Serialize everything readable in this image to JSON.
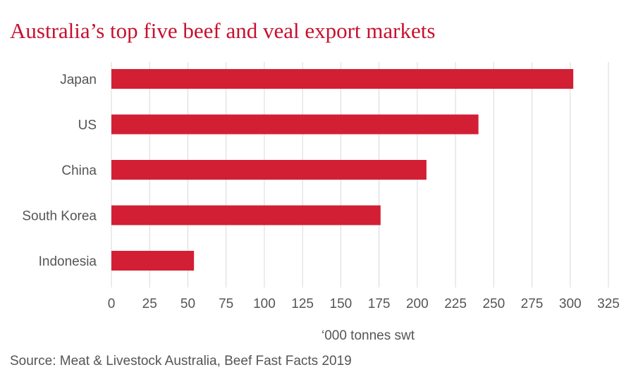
{
  "chart_data": {
    "type": "bar",
    "orientation": "horizontal",
    "title": "Australia’s top five beef and veal export markets",
    "categories": [
      "Japan",
      "US",
      "China",
      "South Korea",
      "Indonesia"
    ],
    "values": [
      302,
      240,
      206,
      176,
      54
    ],
    "xlabel": "‘000 tonnes swt",
    "ylabel": "",
    "xlim": [
      0,
      325
    ],
    "xticks": [
      0,
      25,
      50,
      75,
      100,
      125,
      150,
      175,
      200,
      225,
      250,
      275,
      300,
      325
    ],
    "grid": "vertical",
    "bar_color": "#d21f34",
    "grid_color": "#d9d9d9"
  },
  "source": "Source: Meat & Livestock Australia, Beef Fast Facts 2019",
  "colors": {
    "title": "#c8102e",
    "text": "#555555"
  }
}
